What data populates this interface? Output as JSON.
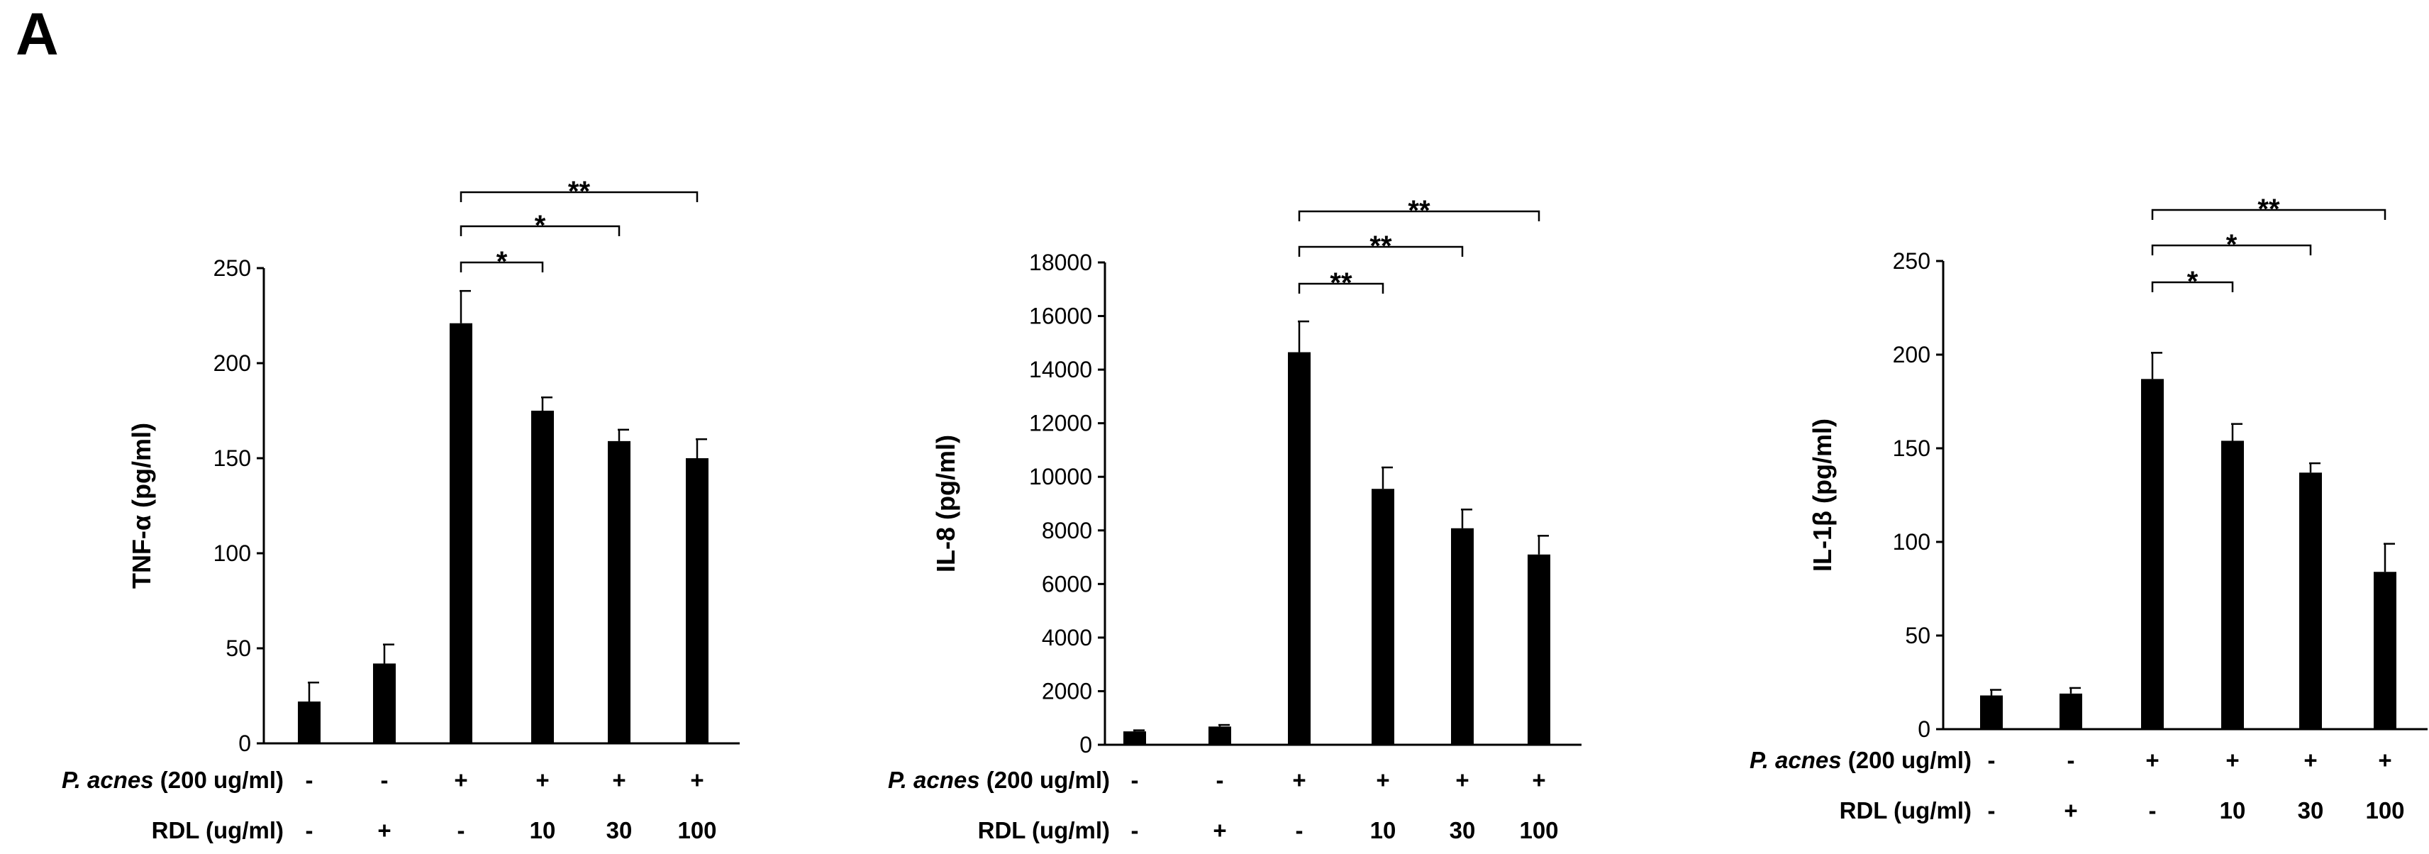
{
  "panel_label": "A",
  "chart_data": [
    {
      "type": "bar",
      "ylabel": "TNF-α (pg/ml)",
      "ylim": [
        0,
        250
      ],
      "yticks": [
        0,
        50,
        100,
        150,
        200,
        250
      ],
      "values": [
        22,
        42,
        221,
        175,
        159,
        150
      ],
      "errors": [
        10,
        10,
        17,
        7,
        6,
        10
      ],
      "rows": [
        {
          "label_italic": "P. acnes",
          "label": " (200 ug/ml)",
          "cells": [
            "-",
            "-",
            "+",
            "+",
            "+",
            "+"
          ]
        },
        {
          "label": "RDL (ug/ml)",
          "cells": [
            "-",
            "+",
            "-",
            "10",
            "30",
            "100"
          ]
        }
      ],
      "comparisons": [
        {
          "from": 2,
          "to": 3,
          "label": "*"
        },
        {
          "from": 2,
          "to": 4,
          "label": "*"
        },
        {
          "from": 2,
          "to": 5,
          "label": "**"
        }
      ]
    },
    {
      "type": "bar",
      "ylabel": "IL-8 (pg/ml)",
      "ylim": [
        0,
        18000
      ],
      "yticks": [
        0,
        2000,
        4000,
        6000,
        8000,
        10000,
        12000,
        14000,
        16000,
        18000
      ],
      "values": [
        500,
        680,
        14650,
        9550,
        8080,
        7100
      ],
      "errors": [
        40,
        60,
        1150,
        800,
        700,
        700
      ],
      "rows": [
        {
          "label_italic": "P. acnes",
          "label": " (200 ug/ml)",
          "cells": [
            "-",
            "-",
            "+",
            "+",
            "+",
            "+"
          ]
        },
        {
          "label": "RDL (ug/ml)",
          "cells": [
            "-",
            "+",
            "-",
            "10",
            "30",
            "100"
          ]
        }
      ],
      "comparisons": [
        {
          "from": 2,
          "to": 3,
          "label": "**"
        },
        {
          "from": 2,
          "to": 4,
          "label": "**"
        },
        {
          "from": 2,
          "to": 5,
          "label": "**"
        }
      ]
    },
    {
      "type": "bar",
      "ylabel": "IL-1β (pg/ml)",
      "ylim": [
        0,
        250
      ],
      "yticks": [
        0,
        50,
        100,
        150,
        200,
        250
      ],
      "values": [
        18,
        19,
        187,
        154,
        137,
        84
      ],
      "errors": [
        3,
        3,
        14,
        9,
        5,
        15
      ],
      "rows": [
        {
          "label_italic": "P. acnes",
          "label": " (200 ug/ml)",
          "cells": [
            "-",
            "-",
            "+",
            "+",
            "+",
            "+"
          ]
        },
        {
          "label": "RDL (ug/ml)",
          "cells": [
            "-",
            "+",
            "-",
            "10",
            "30",
            "100"
          ]
        }
      ],
      "comparisons": [
        {
          "from": 2,
          "to": 3,
          "label": "*"
        },
        {
          "from": 2,
          "to": 4,
          "label": "*"
        },
        {
          "from": 2,
          "to": 5,
          "label": "**"
        }
      ]
    }
  ]
}
